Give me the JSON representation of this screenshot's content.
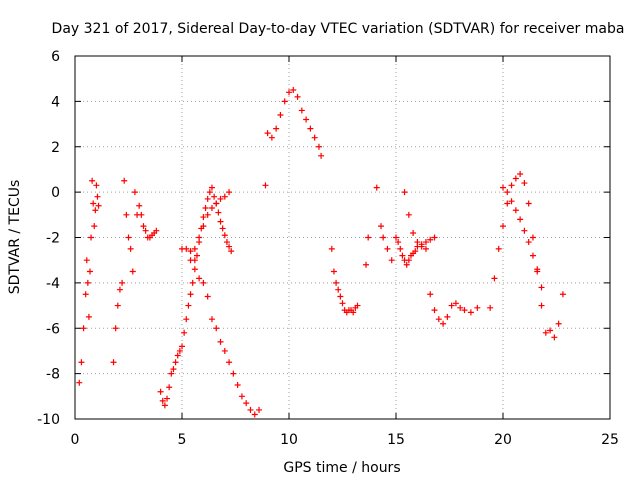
{
  "chart_data": {
    "type": "scatter",
    "title": "Day 321 of 2017, Sidereal Day-to-day VTEC variation (SDTVAR) for receiver maba",
    "xlabel": "GPS time / hours",
    "ylabel": "SDTVAR / TECUs",
    "xlim": [
      0,
      25
    ],
    "ylim": [
      -10,
      6
    ],
    "xticks": [
      0,
      5,
      10,
      15,
      20,
      25
    ],
    "yticks": [
      -10,
      -8,
      -6,
      -4,
      -2,
      0,
      2,
      4,
      6
    ],
    "grid": true,
    "marker": "+",
    "color": "#ff0000",
    "series": [
      {
        "name": "SDTVAR",
        "x": [
          0.2,
          0.3,
          0.4,
          0.5,
          0.55,
          0.6,
          0.65,
          0.7,
          0.75,
          0.8,
          0.85,
          0.9,
          0.95,
          1.0,
          1.05,
          1.1,
          1.8,
          1.9,
          2.0,
          2.1,
          2.2,
          2.3,
          2.4,
          2.5,
          2.6,
          2.7,
          2.8,
          2.9,
          3.0,
          3.1,
          3.2,
          3.3,
          3.4,
          3.5,
          3.6,
          3.7,
          3.8,
          4.0,
          4.1,
          4.2,
          4.3,
          4.4,
          4.5,
          4.6,
          4.7,
          4.8,
          4.9,
          5.0,
          5.1,
          5.2,
          5.3,
          5.4,
          5.5,
          5.6,
          5.7,
          5.8,
          5.9,
          6.0,
          6.1,
          6.2,
          6.3,
          6.4,
          6.5,
          6.6,
          6.7,
          6.8,
          6.9,
          7.0,
          7.1,
          7.2,
          7.3,
          5.0,
          5.2,
          5.4,
          5.6,
          5.8,
          6.0,
          6.2,
          6.4,
          6.6,
          6.8,
          7.0,
          7.2,
          7.4,
          7.6,
          7.8,
          8.0,
          8.2,
          8.4,
          8.6,
          5.4,
          5.6,
          5.8,
          6.0,
          6.2,
          6.4,
          6.6,
          6.8,
          7.0,
          7.2,
          8.9,
          9.0,
          9.2,
          9.4,
          9.6,
          9.8,
          10.0,
          10.2,
          10.4,
          10.6,
          10.8,
          11.0,
          11.2,
          11.4,
          11.5,
          12.0,
          12.1,
          12.2,
          12.3,
          12.4,
          12.5,
          12.6,
          12.7,
          12.8,
          12.9,
          13.0,
          13.1,
          13.2,
          13.6,
          13.7,
          14.1,
          14.3,
          14.4,
          14.6,
          14.8,
          15.0,
          15.1,
          15.2,
          15.3,
          15.4,
          15.5,
          15.6,
          15.7,
          15.8,
          15.9,
          16.0,
          16.2,
          16.4,
          16.6,
          16.8,
          15.4,
          15.6,
          15.8,
          16.0,
          16.2,
          16.4,
          16.6,
          16.8,
          17.0,
          17.2,
          17.4,
          17.6,
          17.8,
          18.0,
          18.2,
          18.5,
          18.8,
          19.4,
          19.6,
          19.8,
          20.0,
          20.2,
          20.4,
          20.6,
          20.8,
          21.0,
          21.2,
          21.4,
          21.6,
          21.8,
          22.0,
          22.2,
          22.4,
          22.6,
          22.8,
          20.0,
          20.2,
          20.4,
          20.6,
          20.8,
          21.0,
          21.2,
          21.4,
          21.6,
          21.8
        ],
        "y": [
          -8.4,
          -7.5,
          -6.0,
          -4.5,
          -3.0,
          -4.0,
          -5.5,
          -3.5,
          -2.0,
          0.5,
          -0.5,
          -1.5,
          -0.8,
          0.3,
          -0.2,
          -0.6,
          -7.5,
          -6.0,
          -5.0,
          -4.3,
          -4.0,
          0.5,
          -1.0,
          -2.0,
          -2.5,
          -3.5,
          0.0,
          -1.0,
          -0.6,
          -1.0,
          -1.5,
          -1.7,
          -2.0,
          -2.0,
          -1.9,
          -1.8,
          -1.7,
          -8.8,
          -9.2,
          -9.4,
          -9.1,
          -8.6,
          -8.0,
          -7.8,
          -7.5,
          -7.2,
          -7.0,
          -6.8,
          -6.2,
          -5.6,
          -5.0,
          -4.5,
          -4.0,
          -3.4,
          -2.8,
          -2.2,
          -1.6,
          -1.1,
          -0.7,
          -0.3,
          0.0,
          0.2,
          -0.2,
          -0.5,
          -0.9,
          -1.3,
          -1.6,
          -1.9,
          -2.2,
          -2.4,
          -2.6,
          -2.5,
          -2.5,
          -2.6,
          -3.0,
          -3.8,
          -4.0,
          -4.6,
          -5.6,
          -6.0,
          -6.6,
          -7.0,
          -7.5,
          -8.0,
          -8.5,
          -9.0,
          -9.3,
          -9.6,
          -9.8,
          -9.6,
          -3.0,
          -2.5,
          -2.0,
          -1.5,
          -1.0,
          -0.7,
          -0.5,
          -0.3,
          -0.2,
          0.0,
          0.3,
          2.6,
          2.4,
          2.8,
          3.4,
          4.0,
          4.4,
          4.5,
          4.2,
          3.6,
          3.2,
          2.8,
          2.4,
          2.0,
          1.6,
          -2.5,
          -3.5,
          -4.0,
          -4.3,
          -4.6,
          -4.9,
          -5.2,
          -5.3,
          -5.2,
          -5.2,
          -5.3,
          -5.1,
          -5.0,
          -3.2,
          -2.0,
          0.2,
          -1.5,
          -2.0,
          -2.5,
          -3.0,
          -2.0,
          -2.2,
          -2.5,
          -2.8,
          -3.0,
          -3.2,
          -3.0,
          -2.8,
          -2.7,
          -2.6,
          -2.4,
          -2.3,
          -2.2,
          -2.1,
          -2.0,
          0.0,
          -1.0,
          -1.8,
          -2.2,
          -2.4,
          -2.5,
          -4.5,
          -5.2,
          -5.6,
          -5.8,
          -5.5,
          -5.0,
          -4.9,
          -5.1,
          -5.2,
          -5.3,
          -5.1,
          -5.1,
          -3.8,
          -2.5,
          -1.5,
          -0.5,
          0.3,
          0.6,
          0.8,
          0.4,
          -0.5,
          -2.0,
          -3.5,
          -5.0,
          -6.2,
          -6.1,
          -6.4,
          -5.8,
          -4.5,
          0.2,
          0.0,
          -0.4,
          -0.8,
          -1.2,
          -1.7,
          -2.2,
          -2.8,
          -3.4,
          -4.2
        ]
      }
    ]
  }
}
